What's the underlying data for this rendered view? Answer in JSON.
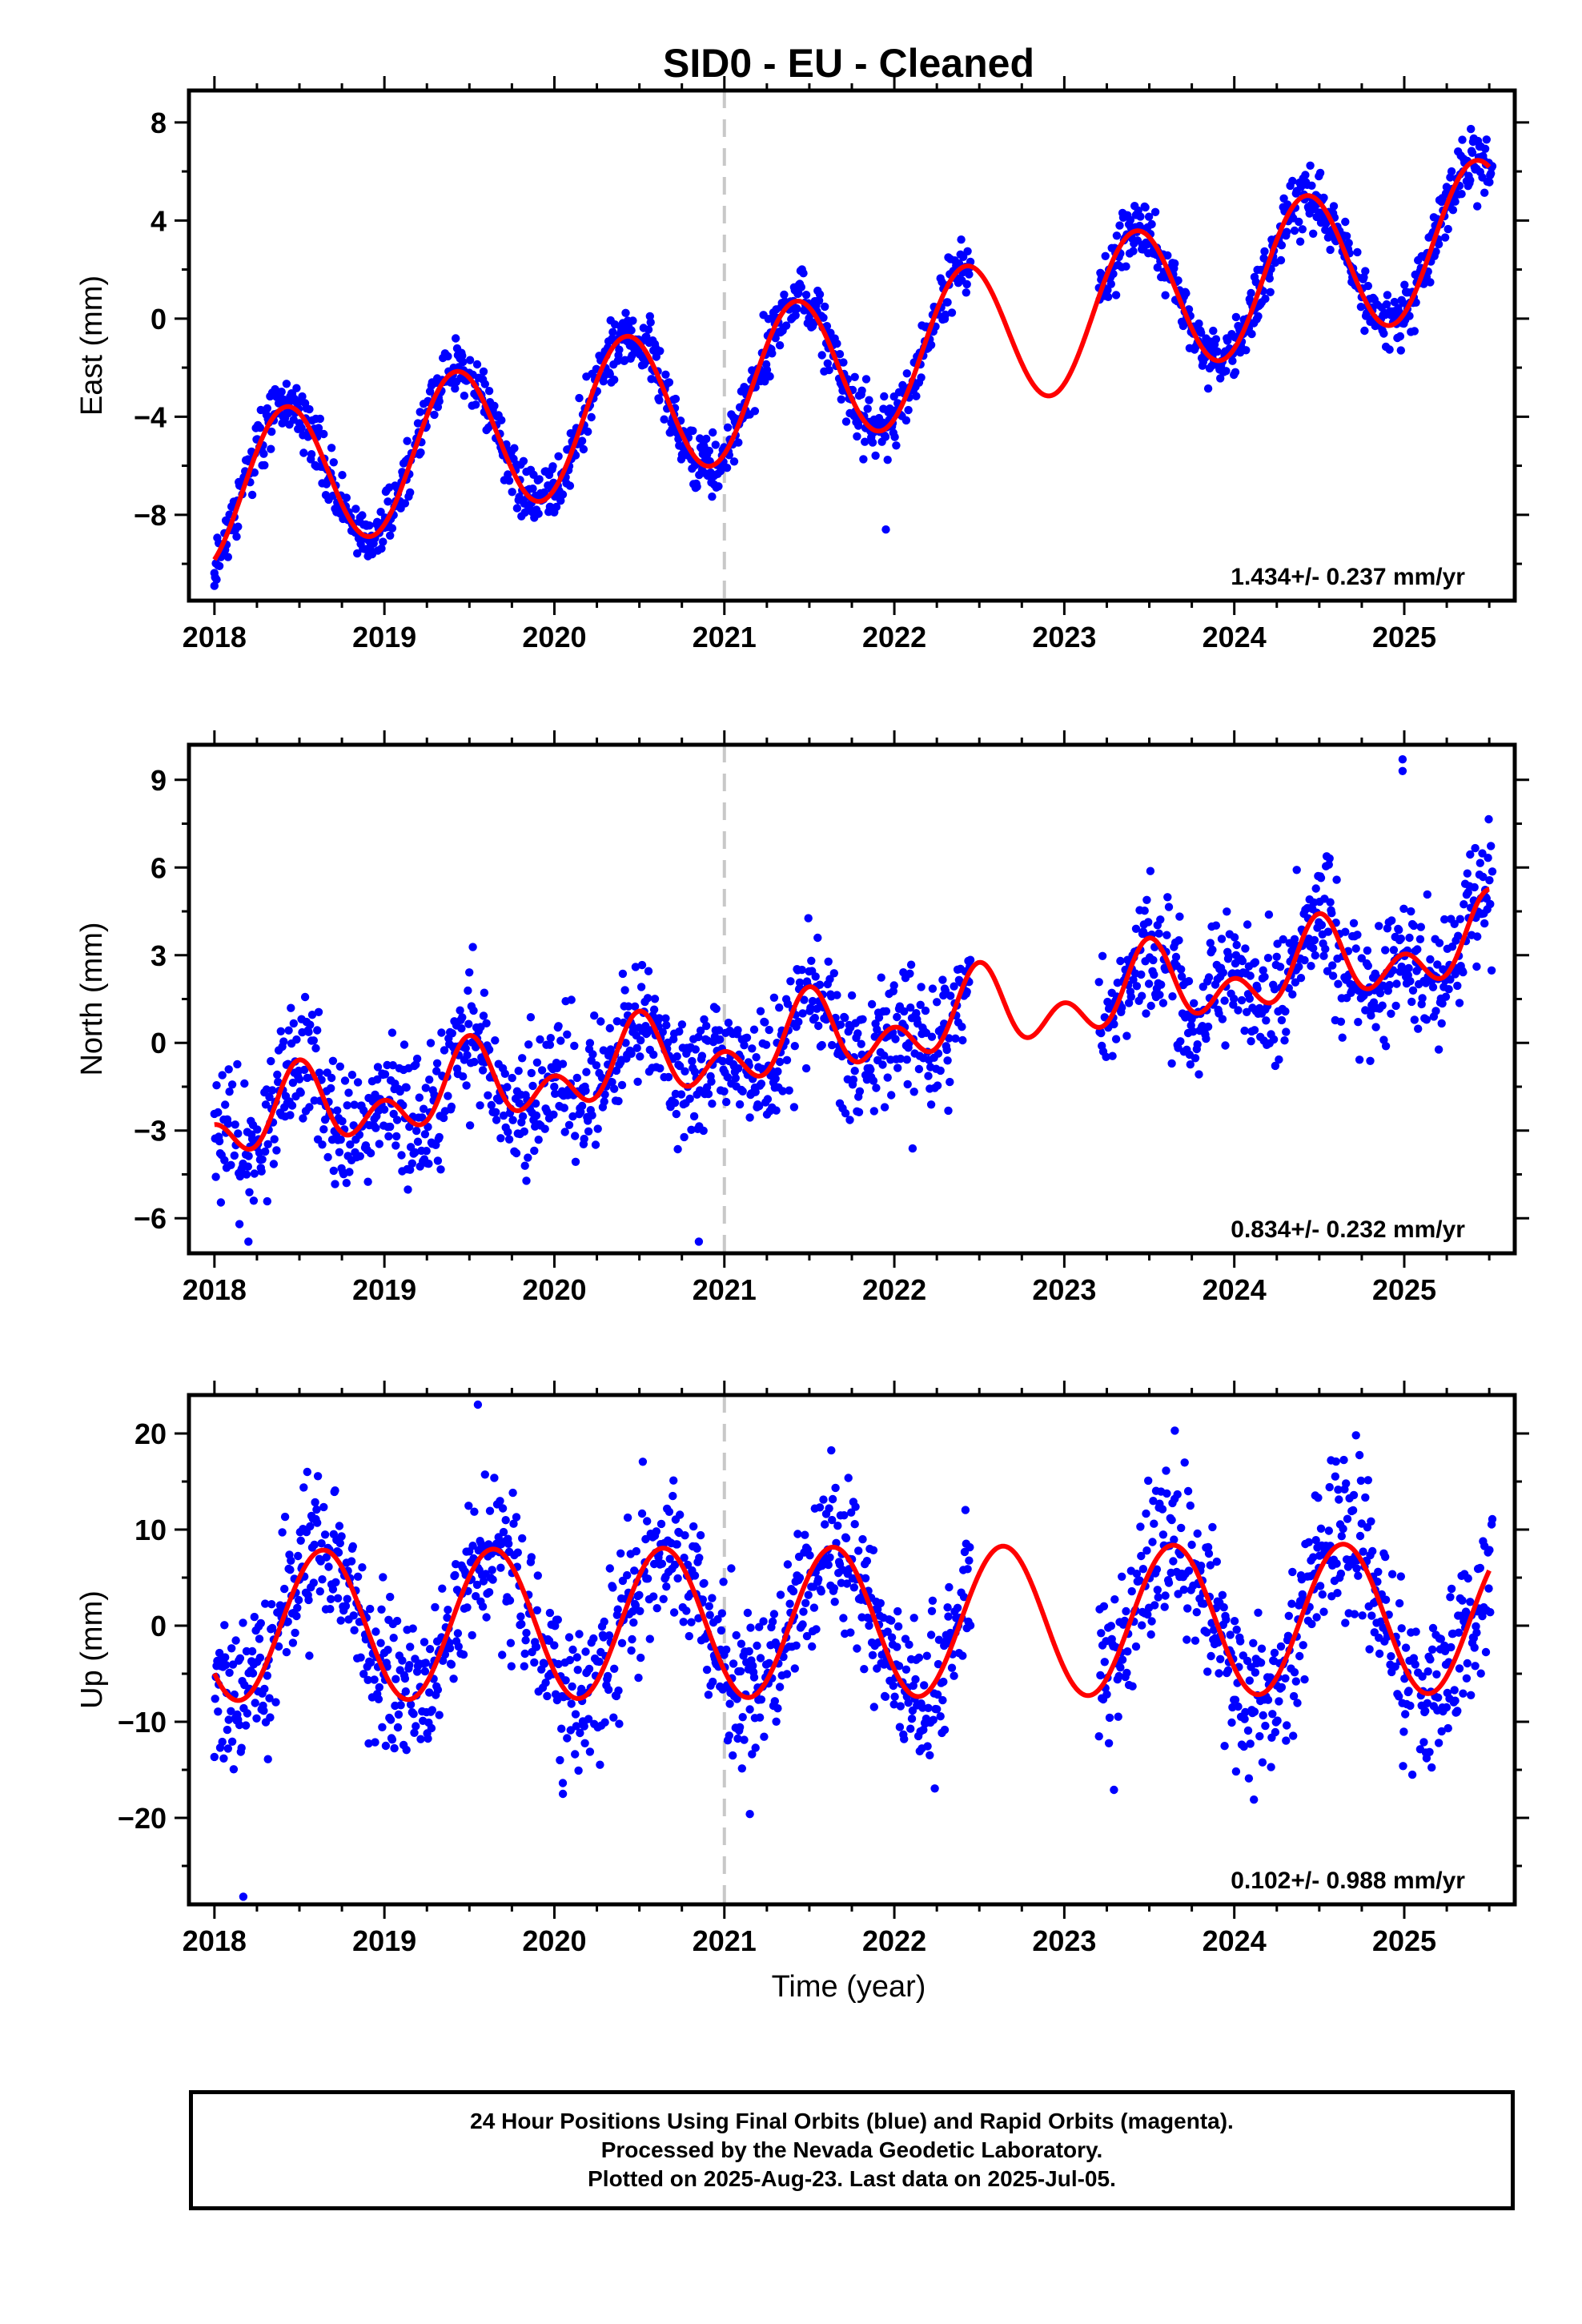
{
  "title": "SID0  - EU - Cleaned",
  "xlabel": "Time (year)",
  "x_ticks": [
    2018,
    2019,
    2020,
    2021,
    2022,
    2023,
    2024,
    2025
  ],
  "x_range": [
    2017.85,
    2025.65
  ],
  "vline_x": 2021.0,
  "colors": {
    "points": "#0000ff",
    "fit": "#ff0000",
    "vline": "#c8c8c8",
    "frame": "#000000"
  },
  "caption": {
    "line1": "24 Hour Positions Using Final Orbits (blue) and Rapid Orbits (magenta).",
    "line2": "Processed by the Nevada Geodetic Laboratory.",
    "line3": "Plotted on 2025-Aug-23. Last data on 2025-Jul-05."
  },
  "chart_data": [
    {
      "type": "scatter",
      "ylabel": "East (mm)",
      "ylim": [
        -11.5,
        9.3
      ],
      "y_ticks": [
        8,
        4,
        0,
        -4,
        -8
      ],
      "y_tick_labels": [
        "8",
        "4",
        "0",
        "−4",
        "−8"
      ],
      "rate_label": "1.434+/- 0.237 mm/yr",
      "gaps": [
        [
          2022.45,
          2023.2
        ]
      ],
      "fit": {
        "offset": -7.2,
        "trend": 1.434,
        "annual_amp": 3.0,
        "annual_peak": 2018.42,
        "semiannual_amp": 0.0,
        "semiannual_peak": 2018.0
      },
      "noise": 0.6,
      "outliers": [
        [
          2021.95,
          -8.6
        ],
        [
          2018.0,
          -10.9
        ]
      ],
      "seed": 11
    },
    {
      "type": "scatter",
      "ylabel": "North (mm)",
      "ylim": [
        -7.2,
        10.2
      ],
      "y_ticks": [
        9,
        6,
        3,
        0,
        -3,
        -6
      ],
      "y_tick_labels": [
        "9",
        "6",
        "3",
        "0",
        "−3",
        "−6"
      ],
      "rate_label": "0.834+/- 0.232 mm/yr",
      "gaps": [
        [
          2022.45,
          2023.2
        ]
      ],
      "fit": {
        "offset": -2.8,
        "trend": 0.834,
        "annual_amp": 0.9,
        "annual_peak": 2018.5,
        "semiannual_amp": 0.9,
        "semiannual_peak": 2018.0
      },
      "noise": 1.1,
      "outliers": [
        [
          2024.99,
          9.7
        ],
        [
          2024.99,
          9.3
        ],
        [
          2020.85,
          -6.8
        ],
        [
          2018.2,
          -6.8
        ]
      ],
      "seed": 23
    },
    {
      "type": "scatter",
      "ylabel": "Up (mm)",
      "ylim": [
        -29.0,
        24.0
      ],
      "y_ticks": [
        20,
        10,
        0,
        -10,
        -20
      ],
      "y_tick_labels": [
        "20",
        "10",
        "0",
        "−10",
        "−20"
      ],
      "rate_label": "0.102+/- 0.988 mm/yr",
      "gaps": [
        [
          2022.45,
          2023.2
        ]
      ],
      "fit": {
        "offset": 0.0,
        "trend": 0.102,
        "annual_amp": 7.8,
        "annual_peak": 2018.64,
        "semiannual_amp": 0.0,
        "semiannual_peak": 2018.0
      },
      "noise": 4.0,
      "outliers": [
        [
          2019.55,
          23.0
        ],
        [
          2023.65,
          20.3
        ],
        [
          2018.17,
          -28.2
        ],
        [
          2020.05,
          -17.5
        ],
        [
          2021.15,
          -19.6
        ]
      ],
      "seed": 37
    }
  ]
}
